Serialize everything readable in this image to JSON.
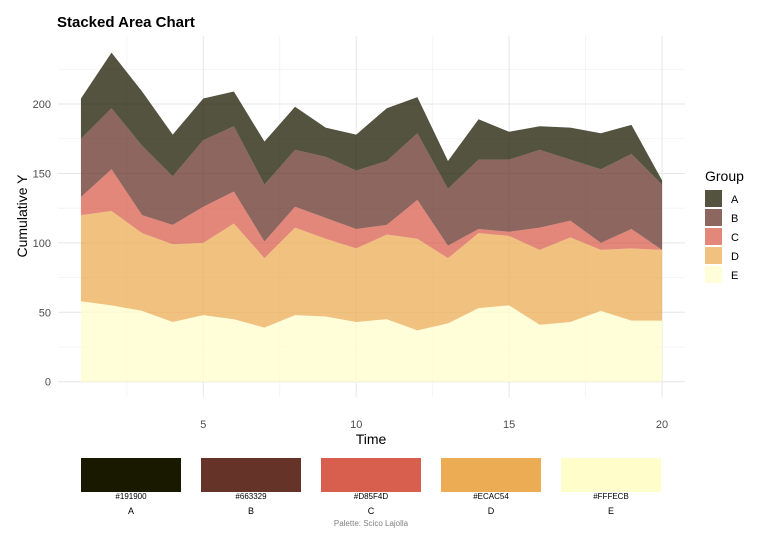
{
  "chart_data": {
    "type": "area",
    "stacked": true,
    "title": "Stacked Area Chart",
    "xlabel": "Time",
    "ylabel": "Cumulative Y",
    "x": [
      1,
      2,
      3,
      4,
      5,
      6,
      7,
      8,
      9,
      10,
      11,
      12,
      13,
      14,
      15,
      16,
      17,
      18,
      19,
      20
    ],
    "xlim": [
      1,
      20
    ],
    "ylim": [
      0,
      240
    ],
    "x_ticks": [
      5,
      10,
      15,
      20
    ],
    "y_ticks": [
      0,
      50,
      100,
      150,
      200
    ],
    "grid": true,
    "legend_title": "Group",
    "legend_position": "right",
    "stack_order_bottom_to_top": [
      "E",
      "D",
      "C",
      "B",
      "A"
    ],
    "series": [
      {
        "name": "E",
        "color": "#FFFECB",
        "values": [
          58,
          55,
          51,
          43,
          48,
          45,
          39,
          48,
          47,
          43,
          45,
          37,
          42,
          53,
          55,
          41,
          43,
          51,
          44,
          44
        ]
      },
      {
        "name": "D",
        "color": "#ECAC54",
        "values": [
          62,
          68,
          56,
          56,
          52,
          69,
          50,
          63,
          56,
          53,
          61,
          66,
          47,
          54,
          50,
          54,
          61,
          44,
          52,
          51
        ]
      },
      {
        "name": "C",
        "color": "#D85F4D",
        "values": [
          13,
          30,
          13,
          14,
          26,
          23,
          12,
          15,
          15,
          14,
          7,
          28,
          9,
          3,
          3,
          16,
          12,
          5,
          14,
          0
        ]
      },
      {
        "name": "B",
        "color": "#663329",
        "values": [
          42,
          44,
          50,
          35,
          48,
          47,
          41,
          41,
          44,
          42,
          46,
          48,
          41,
          50,
          52,
          56,
          44,
          53,
          54,
          47
        ]
      },
      {
        "name": "A",
        "color": "#191900",
        "values": [
          29,
          40,
          39,
          30,
          30,
          25,
          31,
          31,
          21,
          26,
          38,
          26,
          20,
          29,
          20,
          17,
          23,
          26,
          21,
          3
        ]
      }
    ],
    "area_opacity": 0.75
  },
  "palette": {
    "note": "Palette: Scico Lajolla",
    "swatches": [
      {
        "name": "A",
        "hex": "#191900"
      },
      {
        "name": "B",
        "hex": "#663329"
      },
      {
        "name": "C",
        "hex": "#D85F4D"
      },
      {
        "name": "D",
        "hex": "#ECAC54"
      },
      {
        "name": "E",
        "hex": "#FFFECB"
      }
    ]
  }
}
